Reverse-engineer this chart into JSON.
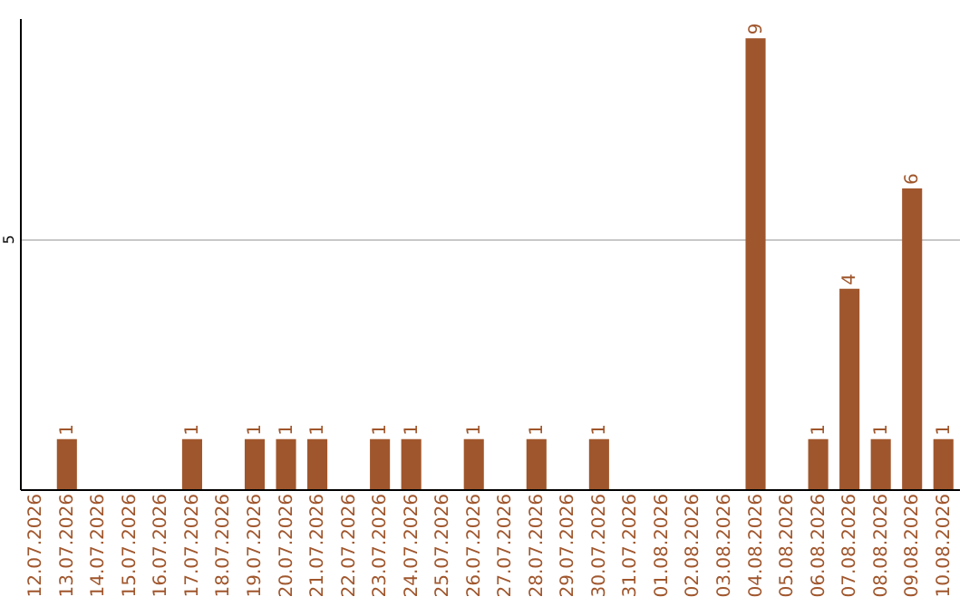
{
  "chart_data": {
    "type": "bar",
    "categories": [
      "12.07.2026",
      "13.07.2026",
      "14.07.2026",
      "15.07.2026",
      "16.07.2026",
      "17.07.2026",
      "18.07.2026",
      "19.07.2026",
      "20.07.2026",
      "21.07.2026",
      "22.07.2026",
      "23.07.2026",
      "24.07.2026",
      "25.07.2026",
      "26.07.2026",
      "27.07.2026",
      "28.07.2026",
      "29.07.2026",
      "30.07.2026",
      "31.07.2026",
      "01.08.2026",
      "02.08.2026",
      "03.08.2026",
      "04.08.2026",
      "05.08.2026",
      "06.08.2026",
      "07.08.2026",
      "08.08.2026",
      "09.08.2026",
      "10.08.2026"
    ],
    "values": [
      0,
      1,
      0,
      0,
      0,
      1,
      0,
      1,
      1,
      1,
      0,
      1,
      1,
      0,
      1,
      0,
      1,
      0,
      1,
      0,
      0,
      0,
      0,
      9,
      0,
      1,
      4,
      1,
      6,
      1
    ],
    "value_labels": [
      null,
      "1",
      null,
      null,
      null,
      "1",
      null,
      "1",
      "1",
      "1",
      null,
      "1",
      "1",
      null,
      "1",
      null,
      "1",
      null,
      "1",
      null,
      null,
      null,
      null,
      "9",
      null,
      "1",
      "4",
      "1",
      "6",
      "1"
    ],
    "color": "#a0562c",
    "ylim": [
      0,
      9.4
    ],
    "yticks": [
      5
    ],
    "grid": "y"
  }
}
